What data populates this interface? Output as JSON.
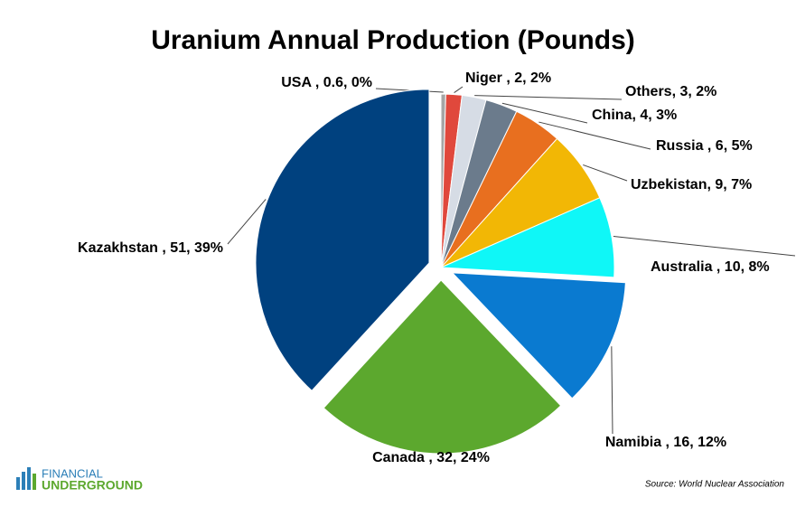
{
  "chart_data": {
    "type": "pie",
    "title": "Uranium Annual Production (Pounds)",
    "values": [
      0.6,
      2,
      3,
      4,
      6,
      9,
      10,
      16,
      32,
      51
    ],
    "value_labels": [
      "USA , 0.6, 0%",
      "Niger , 2, 2%",
      "Others, 3, 2%",
      "China, 4, 3%",
      "Russia , 6, 5%",
      "Uzbekistan, 9, 7%",
      "Australia , 10, 8%",
      "Namibia , 16, 12%",
      "Canada , 32, 24%",
      "Kazakhstan , 51, 39%"
    ],
    "colors": [
      "#a5a5a5",
      "#e0483c",
      "#d6dce5",
      "#6b7b8c",
      "#e86f1f",
      "#f2b705",
      "#0ff7f7",
      "#0a7ad0",
      "#5ca82e",
      "#00417f"
    ],
    "exploded": [
      false,
      false,
      false,
      false,
      false,
      false,
      false,
      true,
      true,
      true
    ],
    "source": "Source:  World Nuclear Association"
  },
  "logo": {
    "line1": "FINANCIAL",
    "line2": "UNDERGROUND"
  }
}
